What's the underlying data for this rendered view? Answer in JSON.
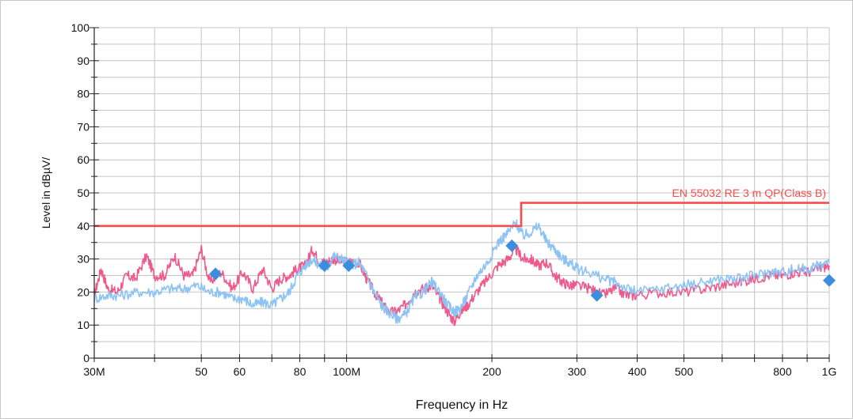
{
  "chart_data": {
    "type": "line",
    "xlabel": "Frequency in Hz",
    "ylabel": "Level in dBµV/",
    "x_scale": "log",
    "xlim": [
      30000000,
      1000000000
    ],
    "ylim": [
      0,
      100
    ],
    "grid": true,
    "x_ticks": [
      {
        "value": 30000000,
        "label": "30M"
      },
      {
        "value": 50000000,
        "label": "50"
      },
      {
        "value": 60000000,
        "label": "60"
      },
      {
        "value": 80000000,
        "label": "80"
      },
      {
        "value": 100000000,
        "label": "100M"
      },
      {
        "value": 200000000,
        "label": "200"
      },
      {
        "value": 300000000,
        "label": "300"
      },
      {
        "value": 400000000,
        "label": "400"
      },
      {
        "value": 500000000,
        "label": "500"
      },
      {
        "value": 800000000,
        "label": "800"
      },
      {
        "value": 1000000000,
        "label": "1G"
      }
    ],
    "y_ticks": [
      0,
      10,
      20,
      30,
      40,
      50,
      60,
      70,
      80,
      90,
      100
    ],
    "limit_line": {
      "label": "EN 55032 RE 3 m QP(Class B)",
      "color": "#ff4a4a",
      "segments": [
        {
          "x": [
            30000000,
            230000000
          ],
          "y": 40
        },
        {
          "x": [
            230000000,
            1000000000
          ],
          "y": 47
        }
      ]
    },
    "series": [
      {
        "color": "#ee5a8c",
        "points": [
          [
            30000000,
            19
          ],
          [
            31000000,
            27
          ],
          [
            32000000,
            21
          ],
          [
            33500000,
            20
          ],
          [
            35000000,
            25
          ],
          [
            36500000,
            24
          ],
          [
            38500000,
            31
          ],
          [
            40000000,
            25
          ],
          [
            42000000,
            25
          ],
          [
            44000000,
            31
          ],
          [
            46000000,
            25
          ],
          [
            48000000,
            25
          ],
          [
            50000000,
            33
          ],
          [
            52000000,
            23
          ],
          [
            55000000,
            26
          ],
          [
            58000000,
            21
          ],
          [
            61000000,
            26
          ],
          [
            64000000,
            21
          ],
          [
            67000000,
            27
          ],
          [
            70000000,
            21
          ],
          [
            73000000,
            24
          ],
          [
            76000000,
            25
          ],
          [
            79000000,
            27
          ],
          [
            82000000,
            28
          ],
          [
            85000000,
            33
          ],
          [
            88000000,
            29
          ],
          [
            91000000,
            29
          ],
          [
            94000000,
            30
          ],
          [
            98000000,
            29
          ],
          [
            102000000,
            29
          ],
          [
            106000000,
            29
          ],
          [
            110000000,
            24
          ],
          [
            114000000,
            20
          ],
          [
            118000000,
            17
          ],
          [
            122000000,
            14
          ],
          [
            127000000,
            14
          ],
          [
            132000000,
            16
          ],
          [
            138000000,
            20
          ],
          [
            144000000,
            21
          ],
          [
            150000000,
            22
          ],
          [
            156000000,
            18
          ],
          [
            162000000,
            14
          ],
          [
            167000000,
            11
          ],
          [
            172000000,
            14
          ],
          [
            178000000,
            16
          ],
          [
            186000000,
            20
          ],
          [
            196000000,
            24
          ],
          [
            206000000,
            28
          ],
          [
            216000000,
            30
          ],
          [
            224000000,
            33
          ],
          [
            232000000,
            30
          ],
          [
            240000000,
            30
          ],
          [
            250000000,
            28
          ],
          [
            260000000,
            29
          ],
          [
            270000000,
            25
          ],
          [
            280000000,
            23
          ],
          [
            290000000,
            22
          ],
          [
            300000000,
            22
          ],
          [
            320000000,
            21
          ],
          [
            340000000,
            19
          ],
          [
            360000000,
            21
          ],
          [
            380000000,
            19
          ],
          [
            400000000,
            19
          ],
          [
            450000000,
            20
          ],
          [
            500000000,
            20
          ],
          [
            550000000,
            21
          ],
          [
            600000000,
            22
          ],
          [
            650000000,
            23
          ],
          [
            700000000,
            24
          ],
          [
            750000000,
            25
          ],
          [
            800000000,
            25
          ],
          [
            850000000,
            26
          ],
          [
            900000000,
            26
          ],
          [
            950000000,
            27
          ],
          [
            1000000000,
            28
          ]
        ]
      },
      {
        "color": "#8dc3f4",
        "points": [
          [
            30000000,
            18
          ],
          [
            32000000,
            19
          ],
          [
            34000000,
            19
          ],
          [
            37000000,
            20
          ],
          [
            40000000,
            20
          ],
          [
            43000000,
            21
          ],
          [
            46000000,
            21
          ],
          [
            49000000,
            22
          ],
          [
            52000000,
            20
          ],
          [
            55000000,
            20
          ],
          [
            58000000,
            18
          ],
          [
            61000000,
            18
          ],
          [
            64000000,
            16
          ],
          [
            67000000,
            17
          ],
          [
            70000000,
            16
          ],
          [
            73000000,
            18
          ],
          [
            76000000,
            20
          ],
          [
            79000000,
            25
          ],
          [
            82000000,
            28
          ],
          [
            85000000,
            30
          ],
          [
            88000000,
            28
          ],
          [
            91000000,
            27
          ],
          [
            94000000,
            31
          ],
          [
            98000000,
            30
          ],
          [
            102000000,
            28
          ],
          [
            106000000,
            29
          ],
          [
            110000000,
            25
          ],
          [
            114000000,
            20
          ],
          [
            118000000,
            16
          ],
          [
            122000000,
            14
          ],
          [
            127000000,
            12
          ],
          [
            132000000,
            13
          ],
          [
            138000000,
            18
          ],
          [
            144000000,
            20
          ],
          [
            150000000,
            23
          ],
          [
            156000000,
            20
          ],
          [
            162000000,
            16
          ],
          [
            167000000,
            14
          ],
          [
            172000000,
            15
          ],
          [
            178000000,
            19
          ],
          [
            186000000,
            25
          ],
          [
            196000000,
            29
          ],
          [
            206000000,
            35
          ],
          [
            216000000,
            38
          ],
          [
            224000000,
            41
          ],
          [
            232000000,
            37
          ],
          [
            240000000,
            38
          ],
          [
            250000000,
            40
          ],
          [
            260000000,
            35
          ],
          [
            270000000,
            33
          ],
          [
            280000000,
            30
          ],
          [
            290000000,
            29
          ],
          [
            300000000,
            27
          ],
          [
            320000000,
            26
          ],
          [
            340000000,
            24
          ],
          [
            360000000,
            23
          ],
          [
            380000000,
            21
          ],
          [
            400000000,
            20
          ],
          [
            450000000,
            21
          ],
          [
            500000000,
            22
          ],
          [
            550000000,
            23
          ],
          [
            600000000,
            24
          ],
          [
            650000000,
            24
          ],
          [
            700000000,
            25
          ],
          [
            750000000,
            26
          ],
          [
            800000000,
            26
          ],
          [
            850000000,
            27
          ],
          [
            900000000,
            27
          ],
          [
            950000000,
            28
          ],
          [
            1000000000,
            29
          ]
        ]
      }
    ],
    "markers": {
      "color": "#3b8edd",
      "shape": "diamond",
      "points": [
        [
          53500000,
          25.5
        ],
        [
          90000000,
          28
        ],
        [
          101000000,
          28
        ],
        [
          220000000,
          34
        ],
        [
          330000000,
          19
        ],
        [
          1000000000,
          23.5
        ]
      ]
    }
  }
}
